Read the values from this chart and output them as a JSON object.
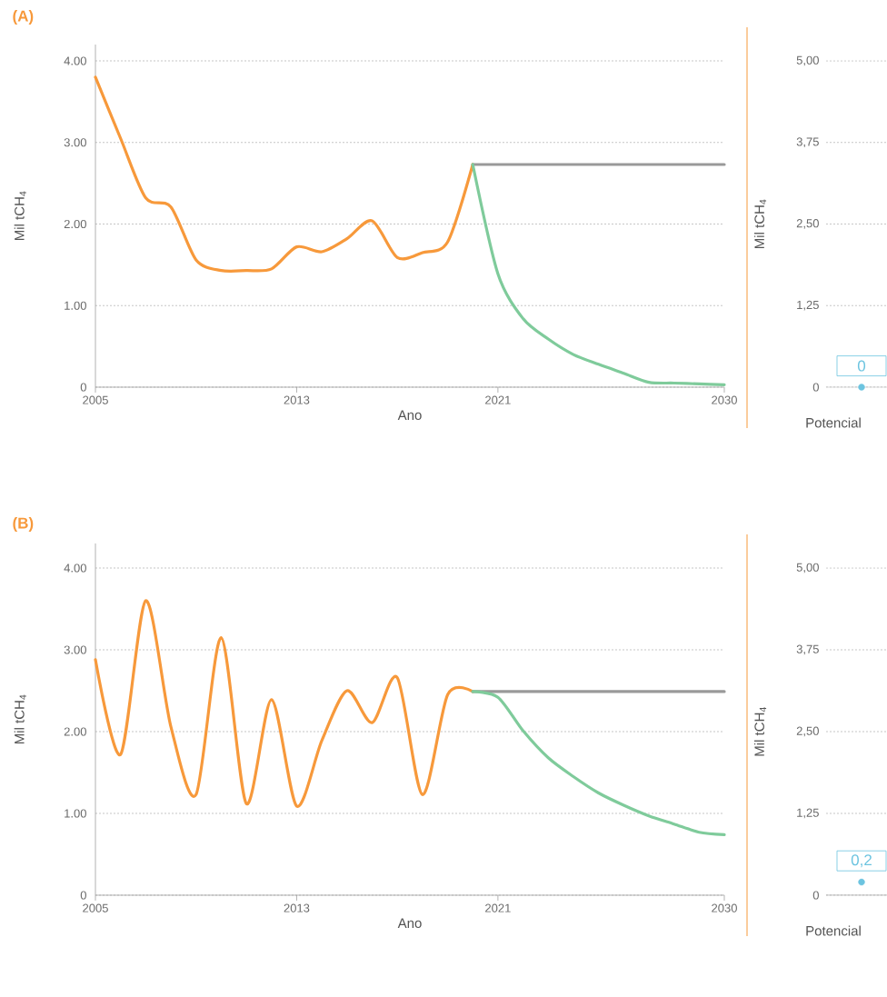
{
  "chart_data": [
    {
      "type": "line",
      "title": "(A)",
      "xlabel": "Ano",
      "ylabel": "Mil tCH$_{4}$",
      "xlim": [
        2005,
        2030
      ],
      "ylim": [
        0,
        4.2
      ],
      "xticks": [
        2005,
        2013,
        2021,
        2030
      ],
      "yticks": [
        0,
        {
          "value": 1,
          "label": "1.00"
        },
        {
          "value": 2,
          "label": "2.00"
        },
        {
          "value": 3,
          "label": "3.00"
        },
        {
          "value": 4,
          "label": "4.00"
        }
      ],
      "grid": "y",
      "series": [
        {
          "color": "#f7993b",
          "x": [
            2005,
            2006,
            2007,
            2008,
            2009,
            2010,
            2011,
            2012,
            2013,
            2014,
            2015,
            2016,
            2017,
            2018,
            2019,
            2020
          ],
          "values": [
            3.8,
            3.05,
            2.32,
            2.21,
            1.56,
            1.43,
            1.43,
            1.45,
            1.72,
            1.66,
            1.82,
            2.04,
            1.59,
            1.65,
            1.78,
            2.73
          ]
        },
        {
          "color": "#999999",
          "x": [
            2020,
            2030
          ],
          "values": [
            2.73,
            2.73
          ]
        },
        {
          "color": "#7fcb9b",
          "x": [
            2020,
            2021,
            2022,
            2023,
            2024,
            2025,
            2026,
            2027,
            2028,
            2029,
            2030
          ],
          "values": [
            2.73,
            1.39,
            0.84,
            0.59,
            0.4,
            0.28,
            0.17,
            0.06,
            0.05,
            0.04,
            0.03
          ]
        }
      ]
    },
    {
      "type": "scatter",
      "ylabel": "Mil tCH$_{4}$",
      "categories": [
        "Potencial"
      ],
      "ylim": [
        0,
        5
      ],
      "yticks": [
        0,
        {
          "value": 1.25,
          "label": "1,25"
        },
        {
          "value": 2.5,
          "label": "2,50"
        },
        {
          "value": 3.75,
          "label": "3,75"
        },
        {
          "value": 5,
          "label": "5,00"
        }
      ],
      "grid": "y",
      "marker": "circle",
      "series": [
        {
          "color": "#6cc4e0",
          "values": [
            0
          ],
          "value_labels": [
            "0"
          ]
        }
      ]
    },
    {
      "type": "line",
      "title": "(B)",
      "xlabel": "Ano",
      "ylabel": "Mil tCH$_{4}$",
      "xlim": [
        2005,
        2030
      ],
      "ylim": [
        0,
        4.3
      ],
      "xticks": [
        2005,
        2013,
        2021,
        2030
      ],
      "yticks": [
        0,
        {
          "value": 1,
          "label": "1.00"
        },
        {
          "value": 2,
          "label": "2.00"
        },
        {
          "value": 3,
          "label": "3.00"
        },
        {
          "value": 4,
          "label": "4.00"
        }
      ],
      "grid": "y",
      "series": [
        {
          "color": "#f7993b",
          "x": [
            2005,
            2006,
            2007,
            2008,
            2009,
            2010,
            2011,
            2012,
            2013,
            2014,
            2015,
            2016,
            2017,
            2018,
            2019,
            2020
          ],
          "values": [
            2.88,
            1.72,
            3.6,
            2.06,
            1.23,
            3.15,
            1.12,
            2.39,
            1.09,
            1.89,
            2.5,
            2.11,
            2.66,
            1.23,
            2.45,
            2.49
          ]
        },
        {
          "color": "#999999",
          "x": [
            2020,
            2030
          ],
          "values": [
            2.49,
            2.49
          ]
        },
        {
          "color": "#7fcb9b",
          "x": [
            2020,
            2021,
            2022,
            2023,
            2024,
            2025,
            2026,
            2027,
            2028,
            2029,
            2030
          ],
          "values": [
            2.49,
            2.42,
            2.01,
            1.68,
            1.45,
            1.25,
            1.1,
            0.97,
            0.87,
            0.77,
            0.74
          ]
        }
      ]
    },
    {
      "type": "scatter",
      "ylabel": "Mil tCH$_{4}$",
      "categories": [
        "Potencial"
      ],
      "ylim": [
        0,
        5
      ],
      "yticks": [
        0,
        {
          "value": 1.25,
          "label": "1,25"
        },
        {
          "value": 2.5,
          "label": "2,50"
        },
        {
          "value": 3.75,
          "label": "3,75"
        },
        {
          "value": 5,
          "label": "5,00"
        }
      ],
      "grid": "y",
      "marker": "circle",
      "series": [
        {
          "color": "#6cc4e0",
          "values": [
            0.2
          ],
          "value_labels": [
            "0,2"
          ]
        }
      ]
    }
  ]
}
